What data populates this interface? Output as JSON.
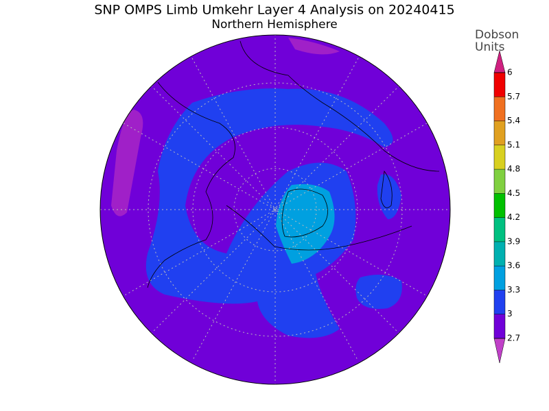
{
  "title": "SNP OMPS Limb Umkehr Layer 4 Analysis on 20240415",
  "subtitle": "Northern Hemisphere",
  "colorbar": {
    "label": [
      "Dobson",
      "Units"
    ],
    "ticks": [
      2.7,
      3,
      3.3,
      3.6,
      3.9,
      4.2,
      4.5,
      4.8,
      5.1,
      5.4,
      5.7,
      6
    ],
    "range": [
      2.7,
      6
    ],
    "under_color": "#c040c8",
    "colors": [
      "#7000d8",
      "#2040f0",
      "#00a0e0",
      "#00b0b0",
      "#00c080",
      "#00c000",
      "#80d040",
      "#d8d020",
      "#e0a020",
      "#f07020",
      "#f00000"
    ],
    "over_color": "#d02080"
  }
}
